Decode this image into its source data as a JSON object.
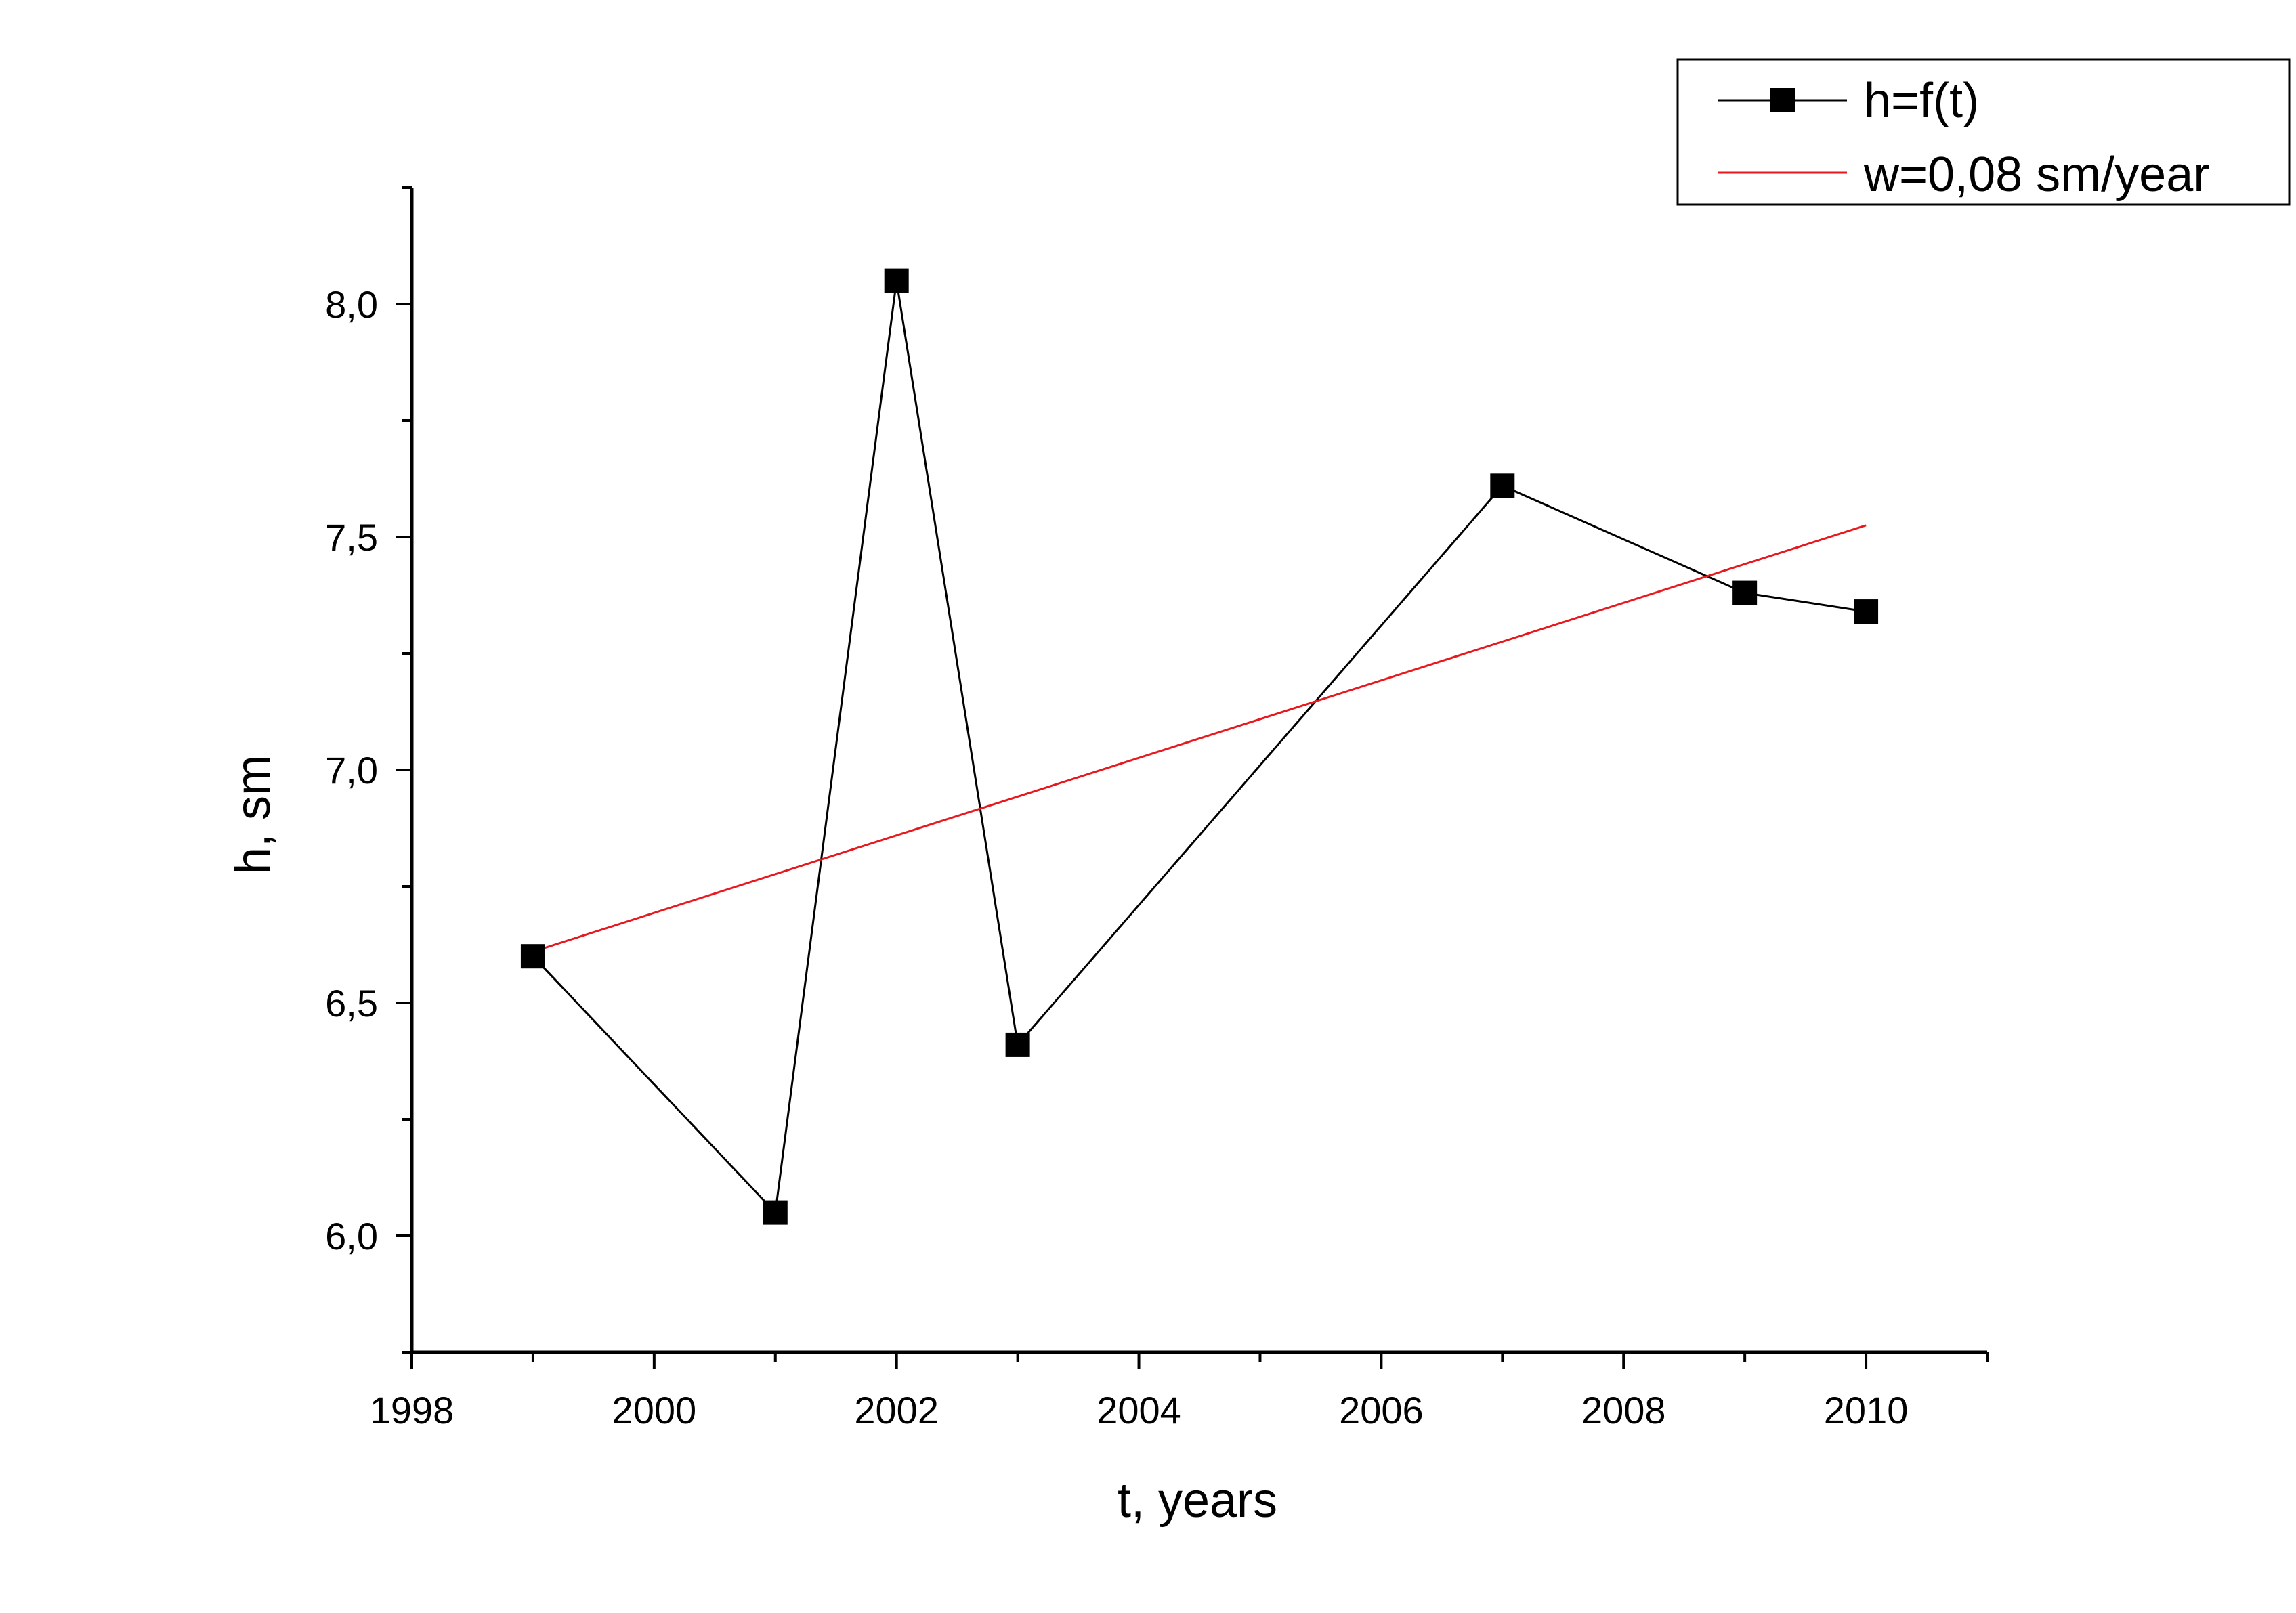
{
  "chart_data": {
    "type": "line",
    "xlabel": "t, years",
    "ylabel": "h, sm",
    "xlim": [
      1998,
      2011
    ],
    "ylim": [
      5.75,
      8.25
    ],
    "x_ticks": [
      1998,
      2000,
      2002,
      2004,
      2006,
      2008,
      2010
    ],
    "y_ticks": [
      6.0,
      6.5,
      7.0,
      7.5,
      8.0
    ],
    "x_tick_labels": [
      "1998",
      "2000",
      "2002",
      "2004",
      "2006",
      "2008",
      "2010"
    ],
    "y_tick_labels": [
      "6,0",
      "6,5",
      "7,0",
      "7,5",
      "8,0"
    ],
    "grid": false,
    "legend_position": "top-right",
    "series": [
      {
        "name": "h=f(t)",
        "style": "line-with-square-markers",
        "color": "#000000",
        "x": [
          1999,
          2001,
          2002,
          2003,
          2007,
          2009,
          2010
        ],
        "y": [
          6.6,
          6.05,
          8.05,
          6.41,
          7.61,
          7.38,
          7.34
        ]
      },
      {
        "name": "w=0,08 sm/year",
        "style": "line",
        "color": "#e8191e",
        "x": [
          1999,
          2010
        ],
        "y": [
          6.61,
          7.525
        ]
      }
    ]
  }
}
